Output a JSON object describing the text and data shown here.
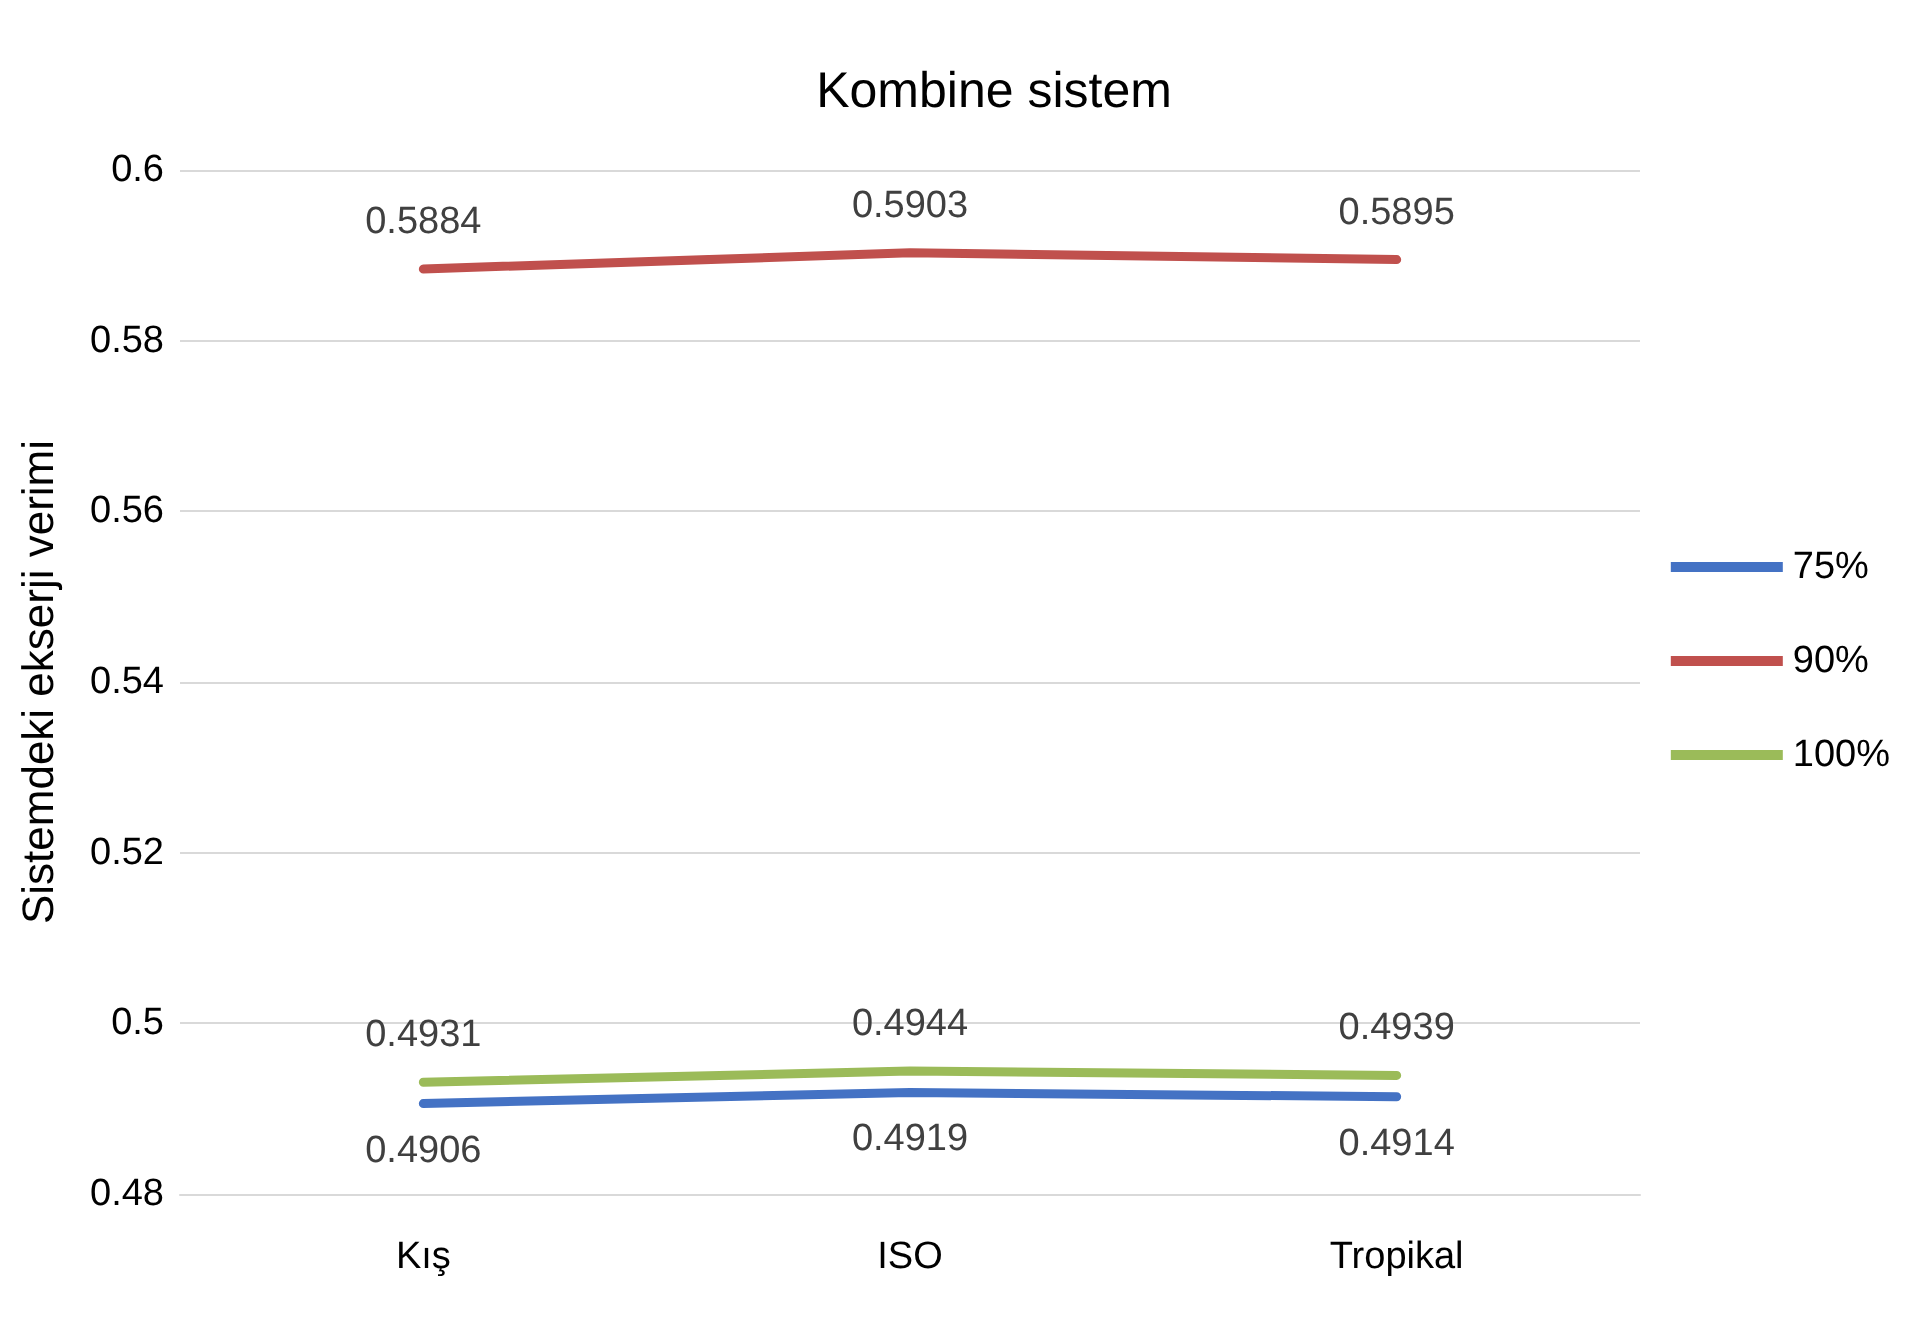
{
  "chart_data": {
    "type": "line",
    "title": "Kombine sistem",
    "ylabel": "Sistemdeki ekserji verimi",
    "categories": [
      "Kış",
      "ISO",
      "Tropikal"
    ],
    "series": [
      {
        "name": "75%",
        "color": "#4472c4",
        "values": [
          0.4906,
          0.4919,
          0.4914
        ]
      },
      {
        "name": "90%",
        "color": "#c0504d",
        "values": [
          0.5884,
          0.5903,
          0.5895
        ]
      },
      {
        "name": "100%",
        "color": "#9bbb59",
        "values": [
          0.4931,
          0.4944,
          0.4939
        ]
      }
    ],
    "ylim": [
      0.48,
      0.6
    ],
    "yticks": [
      0.48,
      0.5,
      0.52,
      0.54,
      0.56,
      0.58,
      0.6
    ],
    "grid": "y",
    "legend": "right",
    "data_labels": true,
    "marker": "none"
  }
}
